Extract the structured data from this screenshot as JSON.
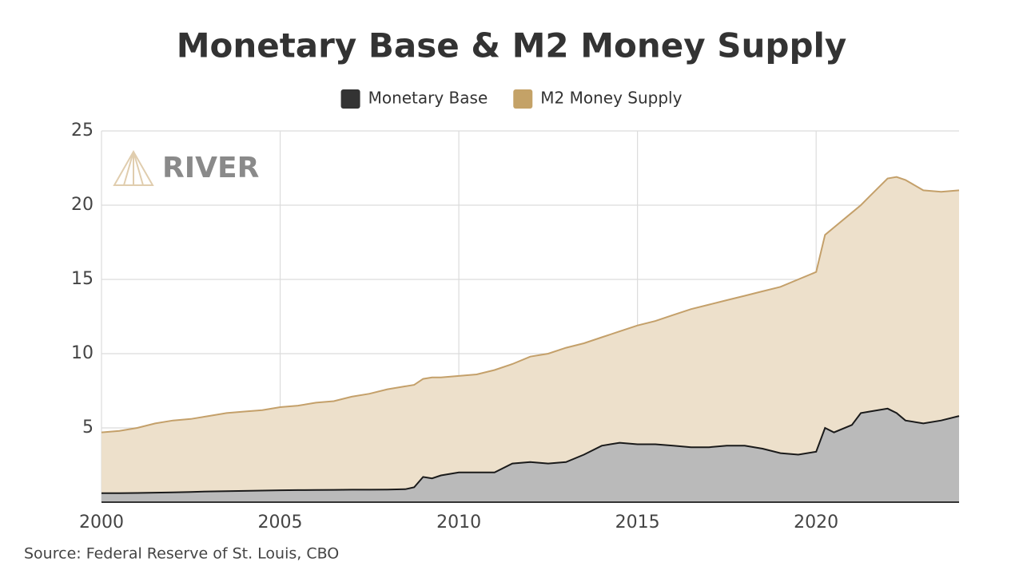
{
  "chart_data": {
    "type": "area",
    "title": "Monetary Base & M2 Money Supply",
    "source": "Source: Federal Reserve of St. Louis, CBO",
    "watermark": "RIVER",
    "x": [
      2000,
      2000.5,
      2001,
      2001.5,
      2002,
      2002.5,
      2003,
      2003.5,
      2004,
      2004.5,
      2005,
      2005.5,
      2006,
      2006.5,
      2007,
      2007.5,
      2008,
      2008.5,
      2008.75,
      2009,
      2009.25,
      2009.5,
      2010,
      2010.5,
      2011,
      2011.5,
      2012,
      2012.5,
      2013,
      2013.5,
      2014,
      2014.5,
      2015,
      2015.5,
      2016,
      2016.5,
      2017,
      2017.5,
      2018,
      2018.5,
      2019,
      2019.5,
      2020,
      2020.25,
      2020.5,
      2021,
      2021.25,
      2021.5,
      2022,
      2022.25,
      2022.5,
      2023,
      2023.5,
      2024
    ],
    "series": [
      {
        "name": "M2 Money Supply",
        "color": "#c4a06a",
        "fill": "#ede0cb",
        "values": [
          4.7,
          4.8,
          5.0,
          5.3,
          5.5,
          5.6,
          5.8,
          6.0,
          6.1,
          6.2,
          6.4,
          6.5,
          6.7,
          6.8,
          7.1,
          7.3,
          7.6,
          7.8,
          7.9,
          8.3,
          8.4,
          8.4,
          8.5,
          8.6,
          8.9,
          9.3,
          9.8,
          10.0,
          10.4,
          10.7,
          11.1,
          11.5,
          11.9,
          12.2,
          12.6,
          13.0,
          13.3,
          13.6,
          13.9,
          14.2,
          14.5,
          15.0,
          15.5,
          18.0,
          18.5,
          19.5,
          20.0,
          20.6,
          21.8,
          21.9,
          21.7,
          21.0,
          20.9,
          21.0
        ]
      },
      {
        "name": "Monetary Base",
        "color": "#1a1a1a",
        "fill": "#bababa",
        "values": [
          0.6,
          0.6,
          0.62,
          0.64,
          0.66,
          0.69,
          0.72,
          0.74,
          0.76,
          0.78,
          0.8,
          0.81,
          0.82,
          0.83,
          0.84,
          0.84,
          0.85,
          0.87,
          1.0,
          1.7,
          1.6,
          1.8,
          2.0,
          2.0,
          2.0,
          2.6,
          2.7,
          2.6,
          2.7,
          3.2,
          3.8,
          4.0,
          3.9,
          3.9,
          3.8,
          3.7,
          3.7,
          3.8,
          3.8,
          3.6,
          3.3,
          3.2,
          3.4,
          5.0,
          4.7,
          5.2,
          6.0,
          6.1,
          6.3,
          6.0,
          5.5,
          5.3,
          5.5,
          5.8
        ]
      }
    ],
    "legend_order": [
      1,
      0
    ],
    "xlim": [
      2000,
      2024
    ],
    "xticks": [
      2000,
      2005,
      2010,
      2015,
      2020
    ],
    "ylim": [
      0,
      25
    ],
    "yticks": [
      5,
      10,
      15,
      20,
      25
    ],
    "grid": true
  }
}
